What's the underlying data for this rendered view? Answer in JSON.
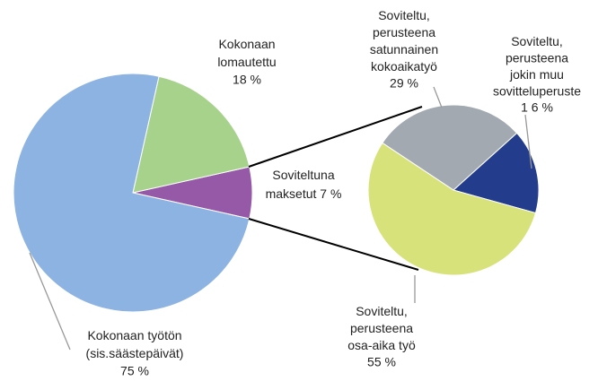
{
  "chart_data": [
    {
      "type": "pie",
      "categories": [
        [
          "Kokonaan työtön",
          "(sis.säästepäivät)"
        ],
        [
          "Kokonaan",
          "lomautettu"
        ],
        [
          "Soviteltuna",
          "maksetut"
        ]
      ],
      "values": [
        75,
        18,
        7
      ],
      "value_labels": [
        "75 %",
        "18 %",
        "7 %"
      ],
      "colors": [
        "#8db3e2",
        "#a6d28c",
        "#9659a7"
      ]
    },
    {
      "type": "pie",
      "categories": [
        [
          "Soviteltu,",
          "perusteena",
          "osa-aika työ"
        ],
        [
          "Soviteltu,",
          "perusteena",
          "satunnainen",
          "kokoaikatyö"
        ],
        [
          "Soviteltu,",
          "perusteena",
          "jokin muu",
          "sovitteluperuste"
        ]
      ],
      "values": [
        55,
        29,
        16
      ],
      "value_labels": [
        "55 %",
        "29  %",
        "1 6 %"
      ],
      "colors": [
        "#d8e27b",
        "#a2a9b1",
        "#233d8c"
      ]
    }
  ]
}
